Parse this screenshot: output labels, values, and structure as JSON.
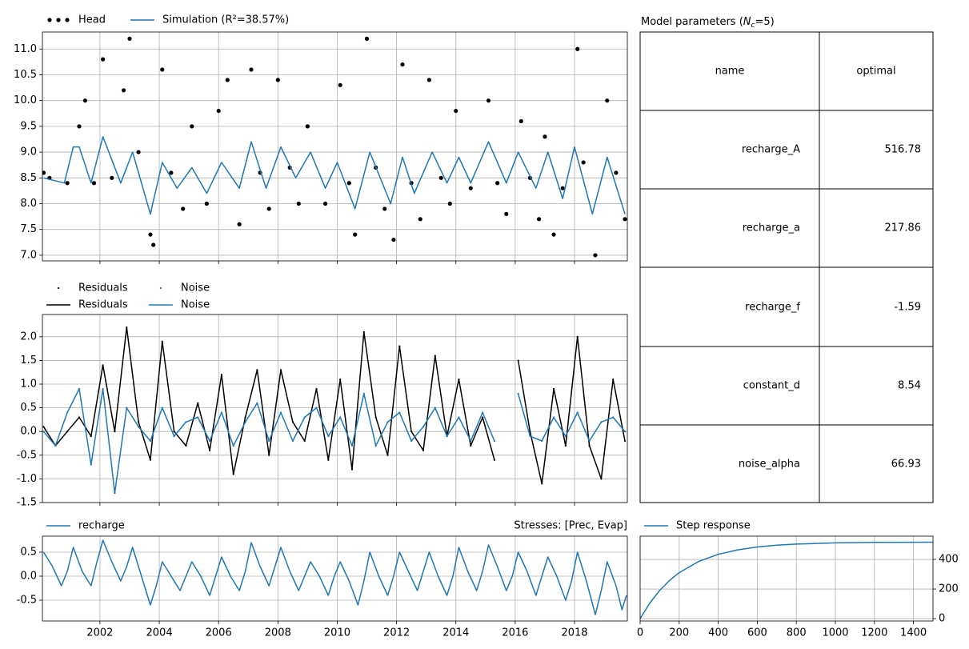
{
  "chart_data": [
    {
      "type": "line",
      "xlim": [
        2000.06,
        2019.78
      ],
      "ylim": [
        6.89,
        11.33
      ],
      "yticks": [
        {
          "value": 7,
          "label": "7.0"
        },
        7.5,
        {
          "value": 8,
          "label": "8.0"
        },
        8.5,
        {
          "value": 9,
          "label": "9.0"
        },
        9.5,
        {
          "value": 10,
          "label": "10.0"
        },
        10.5,
        {
          "value": 11,
          "label": "11.0"
        }
      ],
      "xticks": [
        2002,
        2004,
        2006,
        2008,
        2010,
        2012,
        2014,
        2016,
        2018
      ],
      "show_xtick_labels": false,
      "grid": true,
      "series": [
        {
          "name": "Head",
          "style": "dots",
          "marker": "o",
          "color": "#000000",
          "x": [
            2000.1,
            2000.3,
            2000.9,
            2001.3,
            2001.5,
            2001.8,
            2002.1,
            2002.4,
            2002.8,
            2003.0,
            2003.3,
            2003.7,
            2003.8,
            2004.1,
            2004.4,
            2004.8,
            2005.1,
            2005.6,
            2006.0,
            2006.3,
            2006.7,
            2007.1,
            2007.4,
            2007.7,
            2008.0,
            2008.4,
            2008.7,
            2009.0,
            2009.6,
            2010.1,
            2010.4,
            2010.6,
            2011.0,
            2011.3,
            2011.6,
            2011.9,
            2012.2,
            2012.5,
            2012.8,
            2013.1,
            2013.5,
            2013.8,
            2014.0,
            2014.5,
            2015.1,
            2015.4,
            2015.7,
            2016.2,
            2016.5,
            2016.8,
            2017.0,
            2017.3,
            2017.6,
            2018.1,
            2018.3,
            2018.7,
            2019.1,
            2019.4,
            2019.7
          ],
          "values": [
            8.6,
            8.5,
            8.4,
            9.5,
            10.0,
            8.4,
            10.8,
            8.5,
            10.2,
            11.2,
            9.0,
            7.4,
            7.2,
            10.6,
            8.6,
            7.9,
            9.5,
            8.0,
            9.8,
            10.4,
            7.6,
            10.6,
            8.6,
            7.9,
            10.4,
            8.7,
            8.0,
            9.5,
            8.0,
            10.3,
            8.4,
            7.4,
            11.2,
            8.7,
            7.9,
            7.3,
            10.7,
            8.4,
            7.7,
            10.4,
            8.5,
            8.0,
            9.8,
            8.3,
            10.0,
            8.4,
            7.8,
            9.6,
            8.5,
            7.7,
            9.3,
            7.4,
            8.3,
            11.0,
            8.8,
            7.0,
            10.0,
            8.6,
            7.7
          ]
        },
        {
          "name": "Simulation (R²=38.57%)",
          "style": "line",
          "color": "#1f77b4",
          "x": [
            2000.1,
            2000.8,
            2001.1,
            2001.3,
            2001.7,
            2002.1,
            2002.7,
            2003.1,
            2003.7,
            2004.1,
            2004.6,
            2005.1,
            2005.6,
            2006.1,
            2006.7,
            2007.1,
            2007.6,
            2008.1,
            2008.6,
            2009.1,
            2009.6,
            2010.0,
            2010.6,
            2011.1,
            2011.8,
            2012.2,
            2012.6,
            2013.2,
            2013.7,
            2014.1,
            2014.5,
            2015.1,
            2015.7,
            2016.1,
            2016.7,
            2017.1,
            2017.6,
            2018.0,
            2018.6,
            2019.1,
            2019.7
          ],
          "values": [
            8.5,
            8.4,
            9.1,
            9.1,
            8.4,
            9.3,
            8.4,
            9.0,
            7.8,
            8.8,
            8.3,
            8.7,
            8.2,
            8.8,
            8.3,
            9.2,
            8.3,
            9.1,
            8.5,
            9.0,
            8.3,
            8.8,
            7.9,
            9.0,
            8.0,
            8.9,
            8.2,
            9.0,
            8.4,
            8.9,
            8.4,
            9.2,
            8.4,
            9.0,
            8.3,
            9.0,
            8.1,
            9.1,
            7.8,
            8.9,
            7.8
          ]
        }
      ]
    },
    {
      "type": "line",
      "xlim": [
        2000.06,
        2019.78
      ],
      "ylim": [
        -1.5,
        2.47
      ],
      "yticks": [
        -1.5,
        {
          "value": -1,
          "label": "-1.0"
        },
        -0.5,
        {
          "value": 0,
          "label": "0.0"
        },
        0.5,
        {
          "value": 1,
          "label": "1.0"
        },
        1.5,
        {
          "value": 2,
          "label": "2.0"
        }
      ],
      "xticks": [
        2002,
        2004,
        2006,
        2008,
        2010,
        2012,
        2014,
        2016,
        2018
      ],
      "show_xtick_labels": false,
      "grid": true,
      "x": [
        2000.1,
        2000.5,
        2000.9,
        2001.3,
        2001.7,
        2002.1,
        2002.5,
        2002.9,
        2003.3,
        2003.7,
        2004.1,
        2004.5,
        2004.9,
        2005.3,
        2005.7,
        2006.1,
        2006.5,
        2006.9,
        2007.3,
        2007.7,
        2008.1,
        2008.5,
        2008.9,
        2009.3,
        2009.7,
        2010.1,
        2010.5,
        2010.9,
        2011.3,
        2011.7,
        2012.1,
        2012.5,
        2012.9,
        2013.3,
        2013.7,
        2014.1,
        2014.5,
        2014.9,
        2015.3,
        2015.7,
        2016.1,
        2016.5,
        2016.9,
        2017.3,
        2017.7,
        2018.1,
        2018.5,
        2018.9,
        2019.3,
        2019.7
      ],
      "series": [
        {
          "name": "Residuals",
          "style": "dots",
          "marker": ".",
          "color": "#000000",
          "values": [
            0.1,
            -0.3,
            0.0,
            0.3,
            -0.1,
            1.4,
            0.0,
            2.2,
            0.2,
            -0.6,
            1.9,
            0.0,
            -0.3,
            0.6,
            -0.4,
            1.2,
            -0.9,
            0.3,
            1.3,
            -0.5,
            1.3,
            0.2,
            -0.2,
            0.9,
            -0.6,
            1.1,
            -0.8,
            2.1,
            0.3,
            -0.5,
            1.8,
            0.0,
            -0.4,
            1.6,
            -0.1,
            1.1,
            -0.3,
            0.3,
            -0.6,
            null,
            1.5,
            0.0,
            -1.1,
            0.9,
            -0.3,
            2.0,
            -0.3,
            -1.0,
            1.1,
            -0.2
          ]
        },
        {
          "name": "Noise",
          "style": "dots",
          "marker": ".",
          "color": "#1f77b4",
          "values": [
            0.0,
            -0.3,
            0.4,
            0.9,
            -0.7,
            0.9,
            -1.3,
            0.5,
            0.1,
            -0.2,
            0.5,
            -0.1,
            0.2,
            0.3,
            -0.2,
            0.4,
            -0.3,
            0.2,
            0.6,
            -0.2,
            0.4,
            -0.2,
            0.3,
            0.5,
            -0.1,
            0.3,
            -0.3,
            0.8,
            -0.3,
            0.2,
            0.4,
            -0.2,
            0.1,
            0.5,
            -0.1,
            0.3,
            -0.2,
            0.4,
            -0.2,
            null,
            0.8,
            -0.1,
            -0.2,
            0.3,
            -0.1,
            0.4,
            -0.2,
            0.2,
            0.3,
            0.0
          ]
        },
        {
          "name": "Residuals",
          "style": "line",
          "color": "#000000",
          "values": [
            0.1,
            -0.3,
            0.0,
            0.3,
            -0.1,
            1.4,
            0.0,
            2.2,
            0.2,
            -0.6,
            1.9,
            0.0,
            -0.3,
            0.6,
            -0.4,
            1.2,
            -0.9,
            0.3,
            1.3,
            -0.5,
            1.3,
            0.2,
            -0.2,
            0.9,
            -0.6,
            1.1,
            -0.8,
            2.1,
            0.3,
            -0.5,
            1.8,
            0.0,
            -0.4,
            1.6,
            -0.1,
            1.1,
            -0.3,
            0.3,
            -0.6,
            null,
            1.5,
            0.0,
            -1.1,
            0.9,
            -0.3,
            2.0,
            -0.3,
            -1.0,
            1.1,
            -0.2
          ]
        },
        {
          "name": "Noise",
          "style": "line",
          "color": "#1f77b4",
          "values": [
            0.0,
            -0.3,
            0.4,
            0.9,
            -0.7,
            0.9,
            -1.3,
            0.5,
            0.1,
            -0.2,
            0.5,
            -0.1,
            0.2,
            0.3,
            -0.2,
            0.4,
            -0.3,
            0.2,
            0.6,
            -0.2,
            0.4,
            -0.2,
            0.3,
            0.5,
            -0.1,
            0.3,
            -0.3,
            0.8,
            -0.3,
            0.2,
            0.4,
            -0.2,
            0.1,
            0.5,
            -0.1,
            0.3,
            -0.2,
            0.4,
            -0.2,
            null,
            0.8,
            -0.1,
            -0.2,
            0.3,
            -0.1,
            0.4,
            -0.2,
            0.2,
            0.3,
            0.0
          ]
        }
      ]
    },
    {
      "type": "line",
      "title_right": "Stresses: [Prec, Evap]",
      "xlim": [
        2000.06,
        2019.78
      ],
      "ylim": [
        -0.933,
        0.833
      ],
      "yticks": [
        -0.5,
        {
          "value": 0,
          "label": "0.0"
        },
        0.5
      ],
      "xticks": [
        2002,
        2004,
        2006,
        2008,
        2010,
        2012,
        2014,
        2016,
        2018
      ],
      "show_xtick_labels": true,
      "grid": true,
      "x": [
        2000.1,
        2000.4,
        2000.7,
        2000.9,
        2001.1,
        2001.4,
        2001.7,
        2001.9,
        2002.1,
        2002.4,
        2002.7,
        2002.9,
        2003.1,
        2003.4,
        2003.7,
        2003.9,
        2004.1,
        2004.4,
        2004.7,
        2004.9,
        2005.1,
        2005.4,
        2005.7,
        2005.9,
        2006.1,
        2006.4,
        2006.7,
        2006.9,
        2007.1,
        2007.4,
        2007.7,
        2007.9,
        2008.1,
        2008.4,
        2008.7,
        2008.9,
        2009.1,
        2009.4,
        2009.7,
        2009.9,
        2010.1,
        2010.4,
        2010.7,
        2010.9,
        2011.1,
        2011.4,
        2011.7,
        2011.9,
        2012.1,
        2012.4,
        2012.7,
        2012.9,
        2013.1,
        2013.4,
        2013.7,
        2013.9,
        2014.1,
        2014.4,
        2014.7,
        2014.9,
        2015.1,
        2015.4,
        2015.7,
        2015.9,
        2016.1,
        2016.4,
        2016.7,
        2016.9,
        2017.1,
        2017.4,
        2017.7,
        2017.9,
        2018.1,
        2018.4,
        2018.7,
        2018.9,
        2019.1,
        2019.4,
        2019.6,
        2019.75
      ],
      "series": [
        {
          "name": "recharge",
          "style": "line",
          "color": "#1f77b4",
          "values": [
            0.5,
            0.2,
            -0.2,
            0.1,
            0.6,
            0.1,
            -0.2,
            0.3,
            0.75,
            0.3,
            -0.1,
            0.2,
            0.6,
            0.0,
            -0.6,
            -0.2,
            0.3,
            0.0,
            -0.3,
            0.0,
            0.3,
            0.0,
            -0.4,
            0.0,
            0.4,
            0.0,
            -0.3,
            0.1,
            0.7,
            0.2,
            -0.2,
            0.2,
            0.6,
            0.1,
            -0.3,
            0.0,
            0.3,
            0.0,
            -0.4,
            0.0,
            0.3,
            -0.1,
            -0.6,
            -0.1,
            0.5,
            0.0,
            -0.4,
            0.0,
            0.5,
            0.1,
            -0.3,
            0.1,
            0.5,
            0.0,
            -0.4,
            0.0,
            0.6,
            0.1,
            -0.3,
            0.1,
            0.65,
            0.2,
            -0.3,
            0.0,
            0.5,
            0.1,
            -0.4,
            0.0,
            0.4,
            0.0,
            -0.5,
            -0.1,
            0.5,
            -0.1,
            -0.8,
            -0.3,
            0.3,
            -0.2,
            -0.7,
            -0.4
          ]
        }
      ]
    },
    {
      "type": "line",
      "xlim": [
        0,
        1500
      ],
      "ylim": [
        -16,
        557
      ],
      "yaxis_side": "right",
      "yticks": [
        0,
        200,
        400
      ],
      "xticks": [
        0,
        200,
        400,
        600,
        800,
        1000,
        1200,
        1400
      ],
      "show_xtick_labels": true,
      "grid": true,
      "x": [
        0,
        50,
        100,
        150,
        200,
        300,
        400,
        500,
        600,
        700,
        800,
        1000,
        1200,
        1500
      ],
      "series": [
        {
          "name": "Step response",
          "style": "line",
          "color": "#1f77b4",
          "values": [
            0,
            106.0,
            190.2,
            257.2,
            310.4,
            386.4,
            434.4,
            464.7,
            483.9,
            496.0,
            503.6,
            511.5,
            514.7,
            516.2
          ]
        }
      ]
    }
  ],
  "table": {
    "title": {
      "prefix": "Model parameters (",
      "symbol": "N",
      "subscript": "c",
      "suffix": "=5)"
    },
    "columns": [
      "name",
      "optimal"
    ],
    "rows": [
      [
        "recharge_A",
        516.78
      ],
      [
        "recharge_a",
        217.86
      ],
      [
        "recharge_f",
        -1.59
      ],
      [
        "constant_d",
        8.54
      ],
      [
        "noise_alpha",
        66.93
      ]
    ]
  }
}
